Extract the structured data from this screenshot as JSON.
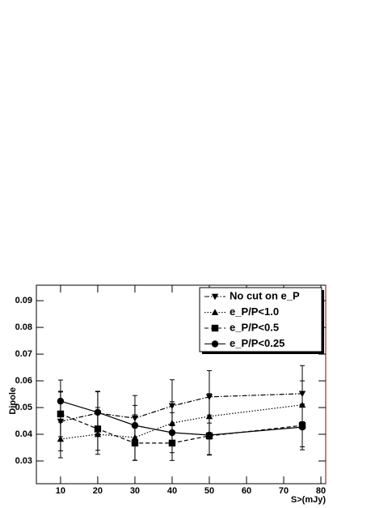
{
  "chart_data": {
    "type": "line",
    "x_label": "S>(mJy)",
    "y_label": "Dipole",
    "x": [
      10,
      20,
      30,
      40,
      50,
      75
    ],
    "series": [
      {
        "name": "No cut on e_P",
        "color": "#000000",
        "marker": "triangle-down",
        "line_style": "dashdot",
        "values": [
          0.0448,
          0.0479,
          0.046,
          0.0506,
          0.054,
          0.0552
        ],
        "errors": [
          0.011,
          0.008,
          0.0085,
          0.0098,
          0.0098,
          0.0105
        ]
      },
      {
        "name": "e_P/P<1.0",
        "color": "#000000",
        "marker": "triangle-up",
        "line_style": "dotted",
        "values": [
          0.0382,
          0.04,
          0.0388,
          0.0442,
          0.0467,
          0.051
        ],
        "errors": [
          0.007,
          0.0075,
          0.0085,
          0.008,
          0.0085,
          0.009
        ]
      },
      {
        "name": "e_P/P<0.5",
        "color": "#000000",
        "marker": "square",
        "line_style": "dashed",
        "values": [
          0.0476,
          0.042,
          0.0367,
          0.0367,
          0.0394,
          0.0433
        ],
        "errors": [
          0.0085,
          0.008,
          0.0065,
          0.0065,
          0.007,
          0.008
        ]
      },
      {
        "name": "e_P/P<0.25",
        "color": "#000000",
        "marker": "circle",
        "line_style": "solid",
        "values": [
          0.0524,
          0.0482,
          0.0433,
          0.0406,
          0.0397,
          0.0427
        ],
        "errors": [
          0.0079,
          0.0079,
          0.0075,
          0.0075,
          0.0075,
          0.0085
        ]
      }
    ],
    "xlim": [
      3.5,
      81.3
    ],
    "ylim": [
      0.0215,
      0.0958
    ],
    "xticks": [
      10,
      20,
      30,
      40,
      50,
      60,
      70,
      80
    ],
    "yticks": [
      0.03,
      0.04,
      0.05,
      0.06,
      0.07,
      0.08,
      0.09
    ],
    "legend": "top-right"
  }
}
